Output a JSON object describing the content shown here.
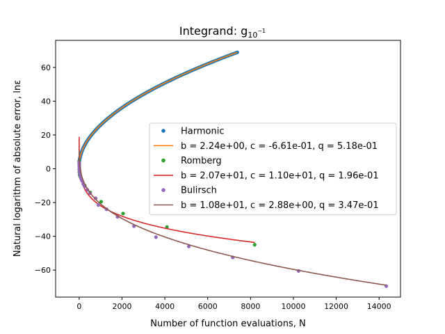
{
  "chart_data": {
    "type": "scatter",
    "title": "Integrand: g",
    "title_subscript": "10",
    "title_superscript": "−1",
    "xlabel": "Number of function evaluations, N",
    "ylabel": "Natural logarithm of absolute error, lnε",
    "xlim": [
      -1100,
      15000
    ],
    "ylim": [
      -76,
      76
    ],
    "xticks": [
      0,
      2000,
      4000,
      6000,
      8000,
      10000,
      12000,
      14000
    ],
    "yticks": [
      -60,
      -40,
      -20,
      0,
      20,
      40,
      60
    ],
    "grid": false,
    "legend_position": "center-right",
    "series": [
      {
        "name": "Harmonic",
        "kind": "scatter",
        "color": "#1f77b4",
        "fit": {
          "b": 2.24,
          "c": -0.661,
          "q": 0.518
        },
        "n_max": 7380,
        "n_points": 140
      },
      {
        "name": "b = 2.24e+00, c = -6.61e-01, q = 5.18e-01",
        "kind": "line",
        "color": "#ff7f0e",
        "fit": {
          "b": 2.24,
          "c": -0.661,
          "q": 0.518
        },
        "x_range": [
          0,
          7380
        ]
      },
      {
        "name": "Romberg",
        "kind": "scatter",
        "color": "#2ca02c",
        "x": [
          1,
          3,
          5,
          9,
          17,
          33,
          65,
          129,
          257,
          513,
          1025,
          2049,
          4097,
          8193
        ],
        "y": [
          4.5,
          2.0,
          -0.5,
          -2.0,
          -3.5,
          -4.0,
          -5.0,
          -7.0,
          -10.0,
          -14.0,
          -19.5,
          -26.5,
          -34.5,
          -45.0
        ]
      },
      {
        "name": "b = 2.07e+01, c = 1.10e+01, q = 1.96e-01",
        "kind": "line",
        "color": "#d62728",
        "fit": {
          "b": 20.7,
          "c": 11.0,
          "q": 0.196
        },
        "x_range": [
          0,
          8193
        ]
      },
      {
        "name": "Bulirsch",
        "kind": "scatter",
        "color": "#9467bd",
        "x": [
          1,
          3,
          5,
          7,
          11,
          15,
          23,
          31,
          47,
          63,
          95,
          127,
          191,
          255,
          383,
          511,
          767,
          895,
          1279,
          1791,
          2559,
          3583,
          5119,
          7167,
          10239,
          14335
        ],
        "y": [
          4.0,
          2.5,
          1.5,
          0.5,
          -0.5,
          -1.0,
          -1.5,
          -2.5,
          -3.5,
          -4.5,
          -6.0,
          -7.0,
          -9.0,
          -10.5,
          -12.5,
          -14.5,
          -17.5,
          -21.5,
          -24.0,
          -28.5,
          -34.0,
          -40.5,
          -46.0,
          -52.5,
          -60.5,
          -69.5
        ]
      },
      {
        "name": "b = 1.08e+01, c = 2.88e+00, q = 3.47e-01",
        "kind": "line",
        "color": "#8c564b",
        "fit": {
          "b": 10.8,
          "c": 2.88,
          "q": 0.347
        },
        "x_range": [
          0,
          14335
        ]
      }
    ]
  }
}
